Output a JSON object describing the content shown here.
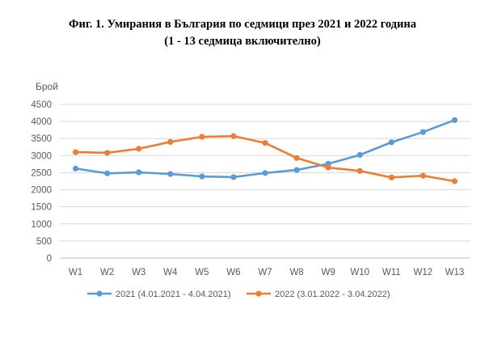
{
  "figure": {
    "title_line1": "Фиг. 1. Умирания в България по седмици през 2021 и 2022 година",
    "title_line2": "(1 - 13 седмица включително)"
  },
  "chart_data": {
    "type": "line",
    "categories": [
      "W1",
      "W2",
      "W3",
      "W4",
      "W5",
      "W6",
      "W7",
      "W8",
      "W9",
      "W10",
      "W11",
      "W12",
      "W13"
    ],
    "ylabel": "Брой",
    "xlabel": "",
    "ylim": [
      0,
      4500
    ],
    "yticks": [
      0,
      500,
      1000,
      1500,
      2000,
      2500,
      3000,
      3500,
      4000,
      4500
    ],
    "grid": true,
    "legend_position": "bottom",
    "series": [
      {
        "name": "2021 (4.01.2021 - 4.04.2021)",
        "color": "#5B9BD5",
        "values": [
          2620,
          2480,
          2510,
          2460,
          2390,
          2370,
          2490,
          2580,
          2760,
          3020,
          3390,
          3690,
          4040
        ]
      },
      {
        "name": "2022 (3.01.2022 - 3.04.2022)",
        "color": "#ED7D31",
        "values": [
          3100,
          3080,
          3200,
          3400,
          3550,
          3570,
          3370,
          2930,
          2650,
          2550,
          2360,
          2410,
          2250
        ]
      }
    ]
  }
}
